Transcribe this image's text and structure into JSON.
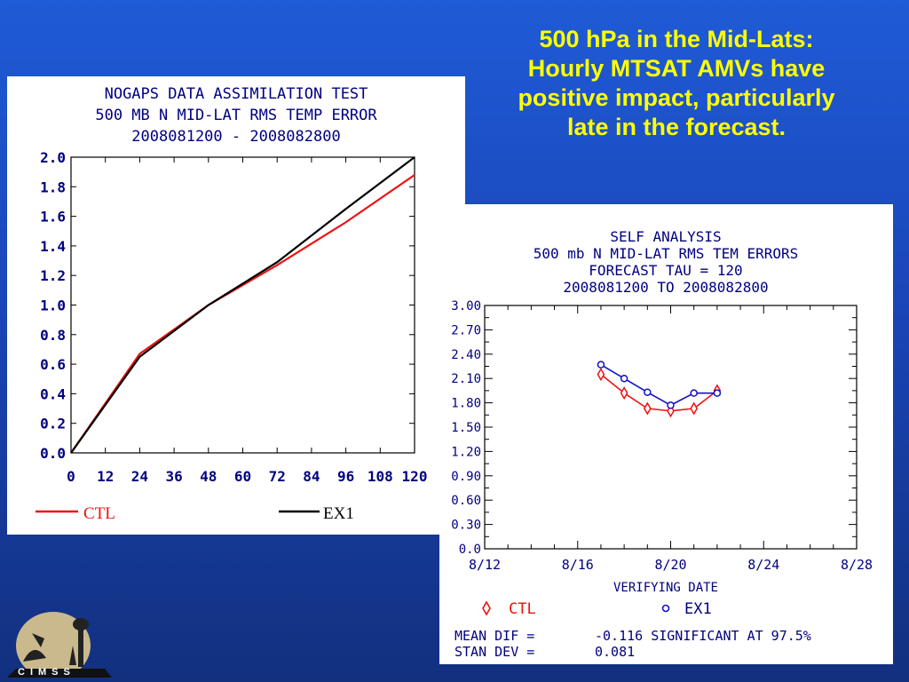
{
  "slide": {
    "headline": [
      "500 hPa in the Mid-Lats:",
      "Hourly MTSAT AMVs have",
      "positive impact, particularly",
      "late in the forecast."
    ],
    "logo_text": "CIMSS"
  },
  "colors": {
    "ctl": "#ee1111",
    "ex1": "#000000",
    "ex1_right": "#1111cc",
    "headline": "#ffff00"
  },
  "chart_data": [
    {
      "type": "line",
      "title_lines": [
        "NOGAPS DATA ASSIMILATION TEST",
        "500 MB N MID-LAT    RMS TEMP    ERROR",
        "2008081200 - 2008082800"
      ],
      "xlabel": "",
      "ylabel": "",
      "x": [
        0,
        24,
        48,
        72,
        96,
        120
      ],
      "x_ticks": [
        "0",
        "12",
        "24",
        "36",
        "48",
        "60",
        "72",
        "84",
        "96",
        "108",
        "120"
      ],
      "y_ticks": [
        "2.0",
        "1.8",
        "1.6",
        "1.4",
        "1.2",
        "1.0",
        "0.8",
        "0.6",
        "0.4",
        "0.2",
        "0.0"
      ],
      "xlim": [
        0,
        120
      ],
      "ylim": [
        0,
        2.0
      ],
      "series": [
        {
          "name": "CTL",
          "values": [
            0.0,
            0.67,
            1.0,
            1.27,
            1.56,
            1.88
          ]
        },
        {
          "name": "EX1",
          "values": [
            0.0,
            0.65,
            1.0,
            1.29,
            1.65,
            2.0
          ]
        }
      ],
      "legend": "bottom"
    },
    {
      "type": "line",
      "title_lines": [
        "SELF ANALYSIS",
        "500 mb N MID-LAT  RMS TEM  ERRORS",
        "FORECAST TAU = 120",
        "2008081200 TO 2008082800"
      ],
      "xlabel": "VERIFYING DATE",
      "ylabel": "",
      "x_ticks": [
        "8/12",
        "8/16",
        "8/20",
        "8/24",
        "8/28"
      ],
      "y_ticks": [
        "3.00",
        "2.70",
        "2.40",
        "2.10",
        "1.80",
        "1.50",
        "1.20",
        "0.90",
        "0.60",
        "0.30",
        "0.0"
      ],
      "xlim": [
        12,
        28
      ],
      "ylim": [
        0,
        3.0
      ],
      "x": [
        17,
        18,
        19,
        20,
        21,
        22
      ],
      "series": [
        {
          "name": "CTL",
          "values": [
            2.15,
            1.92,
            1.73,
            1.7,
            1.73,
            1.95
          ]
        },
        {
          "name": "EX1",
          "values": [
            2.27,
            2.1,
            1.93,
            1.77,
            1.92,
            1.92
          ]
        }
      ],
      "legend": "bottom",
      "stats": [
        {
          "label": "MEAN DIF =",
          "value": "-0.116 SIGNIFICANT AT 97.5%"
        },
        {
          "label": "STAN DEV =",
          "value": "0.081"
        }
      ]
    }
  ]
}
